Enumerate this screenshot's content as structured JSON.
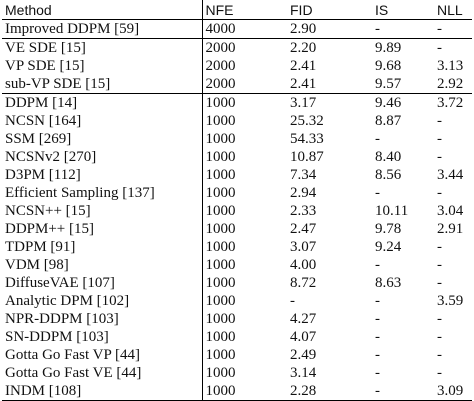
{
  "table": {
    "headers": [
      "Method",
      "NFE",
      "FID",
      "IS",
      "NLL"
    ],
    "groups": [
      {
        "rows": [
          [
            "Improved DDPM [59]",
            "4000",
            "2.90",
            "-",
            "-"
          ]
        ]
      },
      {
        "rows": [
          [
            "VE SDE [15]",
            "2000",
            "2.20",
            "9.89",
            "-"
          ],
          [
            "VP SDE [15]",
            "2000",
            "2.41",
            "9.68",
            "3.13"
          ],
          [
            "sub-VP SDE [15]",
            "2000",
            "2.41",
            "9.57",
            "2.92"
          ]
        ]
      },
      {
        "rows": [
          [
            "DDPM [14]",
            "1000",
            "3.17",
            "9.46",
            "3.72"
          ],
          [
            "NCSN [164]",
            "1000",
            "25.32",
            "8.87",
            "-"
          ],
          [
            "SSM [269]",
            "1000",
            "54.33",
            "-",
            "-"
          ],
          [
            "NCSNv2 [270]",
            "1000",
            "10.87",
            "8.40",
            "-"
          ],
          [
            "D3PM [112]",
            "1000",
            "7.34",
            "8.56",
            "3.44"
          ],
          [
            "Efficient Sampling [137]",
            "1000",
            "2.94",
            "-",
            "-"
          ],
          [
            "NCSN++ [15]",
            "1000",
            "2.33",
            "10.11",
            "3.04"
          ],
          [
            "DDPM++ [15]",
            "1000",
            "2.47",
            "9.78",
            "2.91"
          ],
          [
            "TDPM [91]",
            "1000",
            "3.07",
            "9.24",
            "-"
          ],
          [
            "VDM [98]",
            "1000",
            "4.00",
            "-",
            "-"
          ],
          [
            "DiffuseVAE [107]",
            "1000",
            "8.72",
            "8.63",
            "-"
          ],
          [
            "Analytic DPM [102]",
            "1000",
            "-",
            "-",
            "3.59"
          ],
          [
            "NPR-DDPM [103]",
            "1000",
            "4.27",
            "-",
            "-"
          ],
          [
            "SN-DDPM [103]",
            "1000",
            "4.07",
            "-",
            "-"
          ],
          [
            "Gotta Go Fast VP [44]",
            "1000",
            "2.49",
            "-",
            "-"
          ],
          [
            "Gotta Go Fast VE [44]",
            "1000",
            "3.14",
            "-",
            "-"
          ],
          [
            "INDM [108]",
            "1000",
            "2.28",
            "-",
            "3.09"
          ]
        ]
      }
    ]
  }
}
